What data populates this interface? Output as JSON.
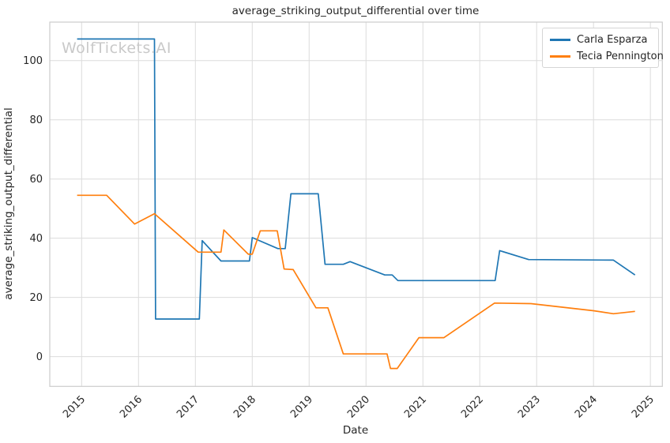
{
  "watermark": "WolfTickets.AI",
  "colors": {
    "blue_series": "#1f77b4",
    "orange_series": "#ff7f0e",
    "grid": "#dcdcdc",
    "spine": "#cccccc",
    "text": "#262626",
    "watermark": "#c9c9c9",
    "background": "#ffffff"
  },
  "legend": {
    "position": "upper right",
    "items": [
      "Carla Esparza",
      "Tecia Pennington"
    ]
  },
  "chart_data": {
    "type": "line",
    "title": "average_striking_output_differential over time",
    "xlabel": "Date",
    "ylabel": "average_striking_output_differential",
    "x_ticks": [
      2015,
      2016,
      2017,
      2018,
      2019,
      2020,
      2021,
      2022,
      2023,
      2024,
      2025
    ],
    "y_ticks": [
      0,
      20,
      40,
      60,
      80,
      100
    ],
    "xlim": [
      2014.44,
      2025.21
    ],
    "ylim": [
      -10.05,
      113.0
    ],
    "grid": true,
    "legend_position": "upper right",
    "series": [
      {
        "name": "Carla Esparza",
        "color": "#1f77b4",
        "points": [
          [
            2014.92,
            107.3
          ],
          [
            2016.28,
            107.3
          ],
          [
            2016.3,
            12.7
          ],
          [
            2017.07,
            12.7
          ],
          [
            2017.12,
            39.2
          ],
          [
            2017.45,
            32.3
          ],
          [
            2017.95,
            32.3
          ],
          [
            2018.0,
            40.2
          ],
          [
            2018.45,
            36.5
          ],
          [
            2018.58,
            36.5
          ],
          [
            2018.68,
            55.0
          ],
          [
            2019.16,
            55.0
          ],
          [
            2019.28,
            31.2
          ],
          [
            2019.6,
            31.2
          ],
          [
            2019.72,
            32.1
          ],
          [
            2020.33,
            27.6
          ],
          [
            2020.46,
            27.6
          ],
          [
            2020.56,
            25.7
          ],
          [
            2022.27,
            25.7
          ],
          [
            2022.35,
            35.8
          ],
          [
            2022.86,
            32.8
          ],
          [
            2024.35,
            32.6
          ],
          [
            2024.73,
            27.6
          ]
        ]
      },
      {
        "name": "Tecia Pennington",
        "color": "#ff7f0e",
        "points": [
          [
            2014.92,
            54.5
          ],
          [
            2015.44,
            54.5
          ],
          [
            2015.93,
            44.8
          ],
          [
            2016.28,
            48.3
          ],
          [
            2017.05,
            35.3
          ],
          [
            2017.45,
            35.3
          ],
          [
            2017.5,
            42.8
          ],
          [
            2017.93,
            34.6
          ],
          [
            2018.0,
            34.6
          ],
          [
            2018.14,
            42.5
          ],
          [
            2018.44,
            42.5
          ],
          [
            2018.56,
            29.6
          ],
          [
            2018.72,
            29.4
          ],
          [
            2019.12,
            16.5
          ],
          [
            2019.33,
            16.5
          ],
          [
            2019.6,
            0.9
          ],
          [
            2020.37,
            0.9
          ],
          [
            2020.43,
            -4.0
          ],
          [
            2020.55,
            -4.0
          ],
          [
            2020.93,
            6.4
          ],
          [
            2021.37,
            6.4
          ],
          [
            2022.26,
            18.1
          ],
          [
            2022.9,
            17.9
          ],
          [
            2024.0,
            15.5
          ],
          [
            2024.35,
            14.5
          ],
          [
            2024.73,
            15.3
          ]
        ]
      }
    ]
  }
}
